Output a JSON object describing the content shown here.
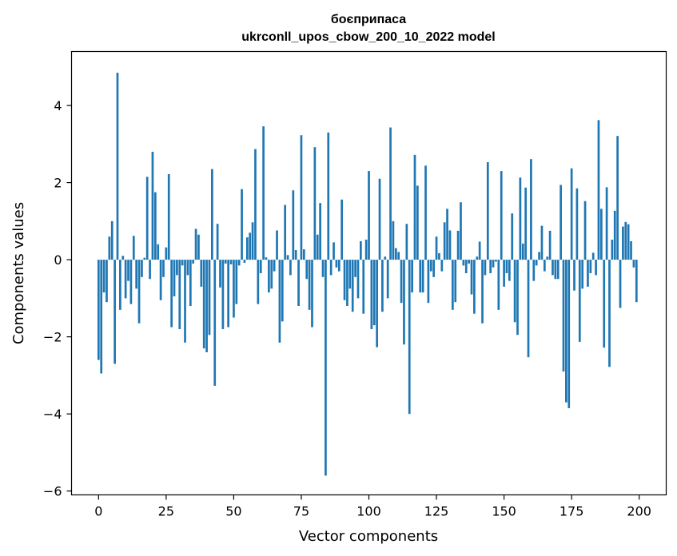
{
  "chart_data": {
    "type": "bar",
    "title": "боєприпаса",
    "subtitle": "ukrconll_upos_cbow_200_10_2022 model",
    "xlabel": "Vector components",
    "ylabel": "Components values",
    "xlim": [
      -10,
      210
    ],
    "ylim": [
      -6.1,
      5.4
    ],
    "xticks": [
      0,
      25,
      50,
      75,
      100,
      125,
      150,
      175,
      200
    ],
    "yticks": [
      -6,
      -4,
      -2,
      0,
      2,
      4
    ],
    "xtick_labels": [
      "0",
      "25",
      "50",
      "75",
      "100",
      "125",
      "150",
      "175",
      "200"
    ],
    "ytick_labels": [
      "−6",
      "−4",
      "−2",
      "0",
      "2",
      "4"
    ],
    "bar_color": "#1f77b4",
    "grid": false,
    "values": [
      -2.6,
      -2.95,
      -0.85,
      -1.1,
      0.6,
      1.0,
      -2.7,
      4.85,
      -1.3,
      0.1,
      -1.0,
      -0.55,
      -1.15,
      0.62,
      -0.75,
      -1.65,
      -0.45,
      0.05,
      2.15,
      -0.5,
      2.8,
      1.75,
      0.4,
      -1.05,
      -0.45,
      0.32,
      2.22,
      -1.75,
      -0.95,
      -0.4,
      -1.8,
      -0.15,
      -2.15,
      -0.4,
      -1.2,
      -0.1,
      0.8,
      0.65,
      -0.7,
      -2.3,
      -2.4,
      -1.95,
      2.35,
      -3.27,
      0.93,
      -0.72,
      -1.8,
      -0.1,
      -1.75,
      -0.12,
      -1.5,
      -1.15,
      -0.15,
      1.83,
      -0.08,
      0.58,
      0.7,
      0.97,
      2.87,
      -1.15,
      -0.35,
      3.46,
      0.06,
      -0.85,
      -0.75,
      -0.3,
      0.76,
      -2.15,
      -1.6,
      1.42,
      0.12,
      -0.4,
      1.8,
      0.25,
      -1.2,
      3.23,
      0.27,
      -0.5,
      -1.3,
      -1.75,
      2.92,
      0.65,
      1.47,
      -0.45,
      -5.6,
      3.3,
      -0.4,
      0.45,
      -0.2,
      -0.3,
      1.56,
      -1.05,
      -1.2,
      -0.75,
      -1.35,
      -0.45,
      -1.0,
      0.48,
      -1.4,
      0.52,
      2.3,
      -1.8,
      -1.7,
      -2.27,
      2.1,
      -1.35,
      0.08,
      -1.0,
      3.43,
      1.0,
      0.3,
      0.2,
      -1.12,
      -2.2,
      0.93,
      -4.0,
      -0.85,
      2.72,
      1.92,
      -0.85,
      -0.85,
      2.44,
      -1.12,
      -0.3,
      -0.45,
      0.6,
      0.17,
      -0.3,
      0.97,
      1.32,
      0.76,
      -1.3,
      -1.1,
      0.75,
      1.49,
      -0.15,
      -0.35,
      -0.1,
      -0.9,
      -1.4,
      0.08,
      0.47,
      -1.65,
      -0.4,
      2.53,
      -0.35,
      -0.2,
      -0.05,
      -1.3,
      2.3,
      -0.7,
      -0.35,
      -0.55,
      1.2,
      -1.62,
      -1.95,
      2.13,
      0.42,
      1.87,
      -2.53,
      2.61,
      -0.55,
      -0.15,
      0.2,
      0.88,
      -0.3,
      0.08,
      0.75,
      -0.4,
      -0.5,
      -0.5,
      1.94,
      -2.9,
      -3.7,
      -3.85,
      2.37,
      -0.8,
      1.85,
      -2.13,
      -0.75,
      1.52,
      -0.7,
      -0.35,
      0.18,
      -0.4,
      3.62,
      1.32,
      -2.28,
      1.88,
      -2.78,
      0.52,
      1.27,
      3.21,
      -1.25,
      0.86,
      0.98,
      0.92,
      0.48,
      -0.2,
      -1.1
    ]
  }
}
